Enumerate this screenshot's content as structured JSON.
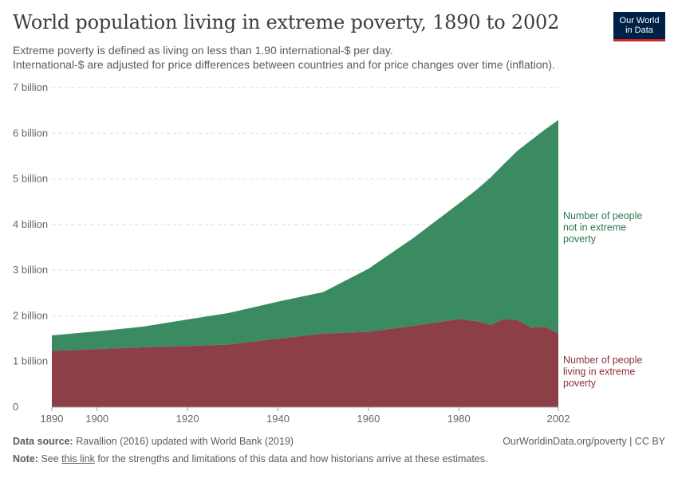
{
  "header": {
    "title": "World population living in extreme poverty, 1890 to 2002",
    "subtitle_line1": "Extreme poverty is defined as living on less than 1.90 international-$ per day.",
    "subtitle_line2": "International-$ are adjusted for price differences between countries and for price changes over time (inflation).",
    "logo_line1": "Our World",
    "logo_line2": "in Data"
  },
  "chart_data": {
    "type": "area",
    "stacked": true,
    "x": [
      1890,
      1900,
      1910,
      1920,
      1929,
      1940,
      1950,
      1960,
      1970,
      1980,
      1984,
      1987,
      1990,
      1993,
      1996,
      1999,
      2002
    ],
    "series": [
      {
        "name": "Number of people living in extreme poverty",
        "color": "#8c3f46",
        "values": [
          1.23,
          1.27,
          1.31,
          1.34,
          1.37,
          1.5,
          1.61,
          1.65,
          1.78,
          1.93,
          1.88,
          1.8,
          1.93,
          1.9,
          1.74,
          1.76,
          1.61
        ]
      },
      {
        "name": "Number of people not in extreme poverty",
        "color": "#3a8a62",
        "values": [
          0.34,
          0.39,
          0.45,
          0.58,
          0.69,
          0.81,
          0.91,
          1.38,
          1.93,
          2.53,
          2.89,
          3.23,
          3.4,
          3.72,
          4.11,
          4.32,
          4.68
        ]
      }
    ],
    "label_lines": {
      "not_poor": [
        "Number of people",
        "not in extreme",
        "poverty"
      ],
      "poor": [
        "Number of people",
        "living in extreme",
        "poverty"
      ]
    },
    "y_ticks": [
      {
        "value": 0,
        "label": "0"
      },
      {
        "value": 1,
        "label": "1 billion"
      },
      {
        "value": 2,
        "label": "2 billion"
      },
      {
        "value": 3,
        "label": "3 billion"
      },
      {
        "value": 4,
        "label": "4 billion"
      },
      {
        "value": 5,
        "label": "5 billion"
      },
      {
        "value": 6,
        "label": "6 billion"
      },
      {
        "value": 7,
        "label": "7 billion"
      }
    ],
    "x_ticks": [
      {
        "value": 1890,
        "label": "1890"
      },
      {
        "value": 1900,
        "label": "1900"
      },
      {
        "value": 1920,
        "label": "1920"
      },
      {
        "value": 1940,
        "label": "1940"
      },
      {
        "value": 1960,
        "label": "1960"
      },
      {
        "value": 1980,
        "label": "1980"
      },
      {
        "value": 2002,
        "label": "2002"
      }
    ],
    "xlim": [
      1890,
      2002
    ],
    "ylim": [
      0,
      7
    ],
    "ylabel_unit": "billion",
    "grid": true
  },
  "footer": {
    "source_label": "Data source:",
    "source_text": "Ravallion (2016) updated with World Bank (2019)",
    "url_text": "OurWorldinData.org/poverty | CC BY",
    "note_label": "Note:",
    "note_pre": "See",
    "note_link": "this link",
    "note_post": "for the strengths and limitations of this data and how historians arrive at these estimates."
  }
}
